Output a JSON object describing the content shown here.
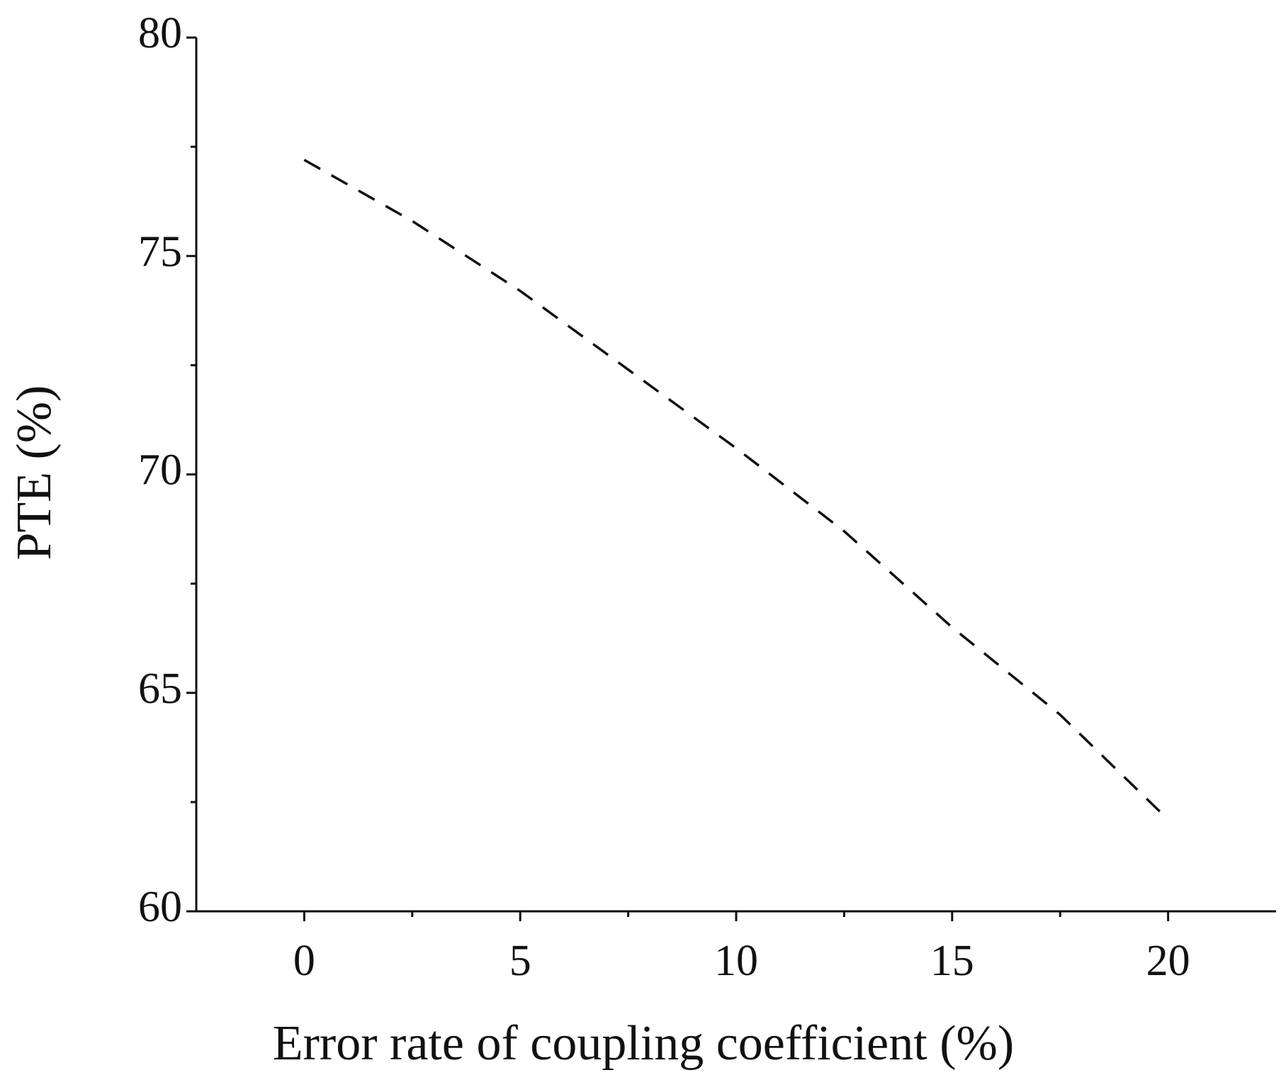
{
  "chart_data": {
    "type": "line",
    "x_label": "Error rate of coupling coefficient (%)",
    "y_label": "PTE (%)",
    "x": [
      0,
      2.5,
      5,
      7.5,
      10,
      12.5,
      15,
      17.5,
      20
    ],
    "series": [
      {
        "color": "#111111",
        "dash": true,
        "values": [
          77.2,
          75.8,
          74.2,
          72.4,
          70.6,
          68.7,
          66.5,
          64.5,
          62.1
        ]
      }
    ],
    "xlim": [
      -2.5,
      22.5
    ],
    "xticks": [
      0,
      5,
      10,
      15,
      20
    ],
    "ylim": [
      60,
      80
    ],
    "yticks": [
      60,
      65,
      70,
      75,
      80
    ],
    "grid": false
  }
}
